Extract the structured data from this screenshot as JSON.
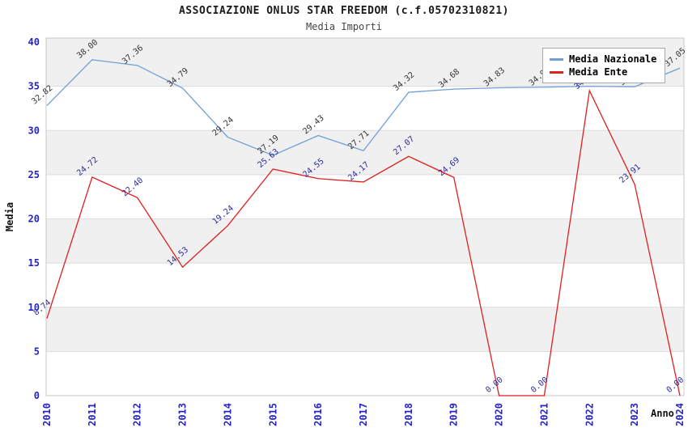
{
  "header": {
    "title": "ASSOCIAZIONE ONLUS STAR FREEDOM (c.f.05702310821)",
    "subtitle": "Media Importi"
  },
  "chart_data": {
    "type": "line",
    "title": "ASSOCIAZIONE ONLUS STAR FREEDOM (c.f.05702310821)",
    "subtitle": "Media Importi",
    "xlabel": "Anno",
    "ylabel": "Media",
    "ylim": [
      0,
      40
    ],
    "yticks": [
      0,
      5,
      10,
      15,
      20,
      25,
      30,
      35,
      40
    ],
    "categories": [
      "2010",
      "2011",
      "2012",
      "2013",
      "2014",
      "2015",
      "2016",
      "2017",
      "2018",
      "2019",
      "2020",
      "2021",
      "2022",
      "2023",
      "2024"
    ],
    "series": [
      {
        "name": "Media Nazionale",
        "color": "#6f9fd6",
        "label_color": "#333333",
        "values": [
          32.82,
          38.0,
          37.36,
          34.79,
          29.24,
          27.19,
          29.43,
          27.71,
          34.32,
          34.68,
          34.83,
          34.9,
          35.0,
          34.95,
          37.05
        ],
        "point_labels": [
          "32.82",
          "38.00",
          "37.36",
          "34.79",
          "29.24",
          "27.19",
          "29.43",
          "27.71",
          "34.32",
          "34.68",
          "34.83",
          "34.90",
          "35.00",
          "34.95",
          "37.05"
        ]
      },
      {
        "name": "Media Ente",
        "color": "#e01f1f",
        "label_color": "#2b2b9b",
        "values": [
          8.74,
          24.72,
          22.4,
          14.53,
          19.24,
          25.63,
          24.55,
          24.17,
          27.07,
          24.69,
          0.0,
          0.0,
          34.5,
          23.91,
          0.0
        ],
        "point_labels": [
          "8.74",
          "24.72",
          "22.40",
          "14.53",
          "19.24",
          "25.63",
          "24.55",
          "24.17",
          "27.07",
          "24.69",
          "0.00",
          "0.00",
          "34.50",
          "23.91",
          "0.00"
        ]
      }
    ],
    "legend_position": "top-right",
    "grid": true,
    "band_colors": [
      "#f0f0f0",
      "#ffffff"
    ],
    "tick_color": "#2424cc",
    "plot_border_color": "#c8c8c8"
  }
}
